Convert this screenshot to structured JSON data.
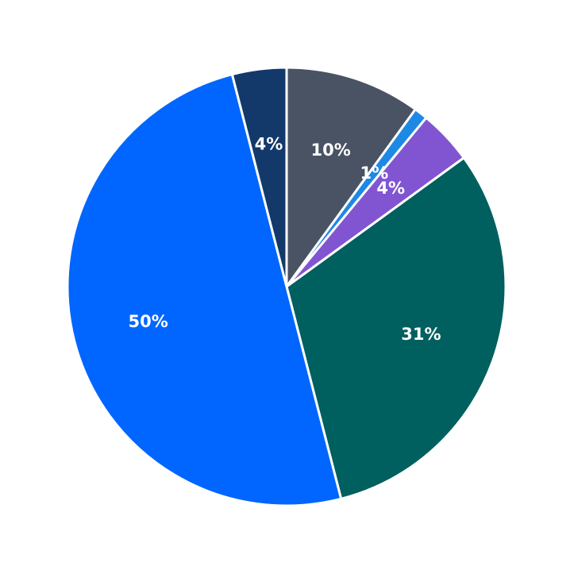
{
  "chart_data": {
    "type": "pie",
    "values": [
      10,
      1,
      4,
      31,
      50,
      4
    ],
    "value_labels": [
      "10%",
      "1%",
      "4%",
      "31%",
      "50%",
      "4%"
    ],
    "colors": [
      "#4a5363",
      "#1e88e5",
      "#8155d1",
      "#005f5f",
      "#0066ff",
      "#13396b"
    ]
  }
}
